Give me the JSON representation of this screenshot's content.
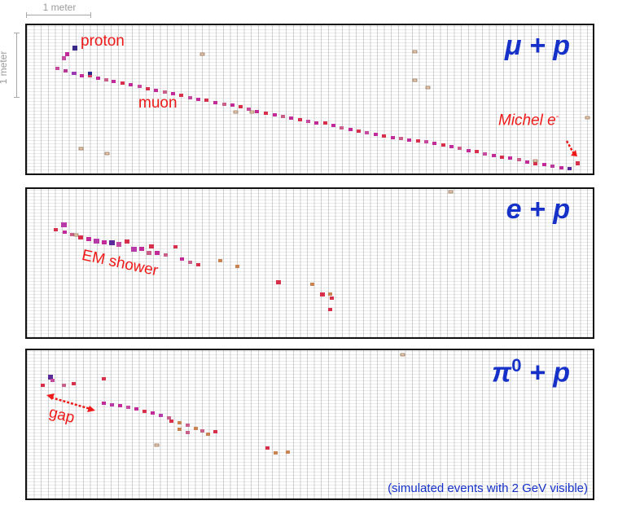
{
  "scale": {
    "horizontal_label": "1 meter",
    "vertical_label": "1 meter"
  },
  "panels": [
    {
      "title": "μ + p",
      "labels": {
        "proton": "proton",
        "muon": "muon",
        "michel": "Michel e",
        "michel_sup": "-"
      }
    },
    {
      "title": "e + p",
      "labels": {
        "shower": "EM shower"
      }
    },
    {
      "title": "π",
      "title_sup": "0",
      "title_rest": " + p",
      "labels": {
        "gap": "gap"
      },
      "note": "(simulated events with 2 GeV visible)"
    }
  ],
  "colors": {
    "accent_blue": "#1531c8",
    "annotation_red": "#ee1a1a",
    "hit_magenta": "#c22a9a",
    "hit_red": "#d8304a",
    "hit_orange": "#c98452"
  }
}
